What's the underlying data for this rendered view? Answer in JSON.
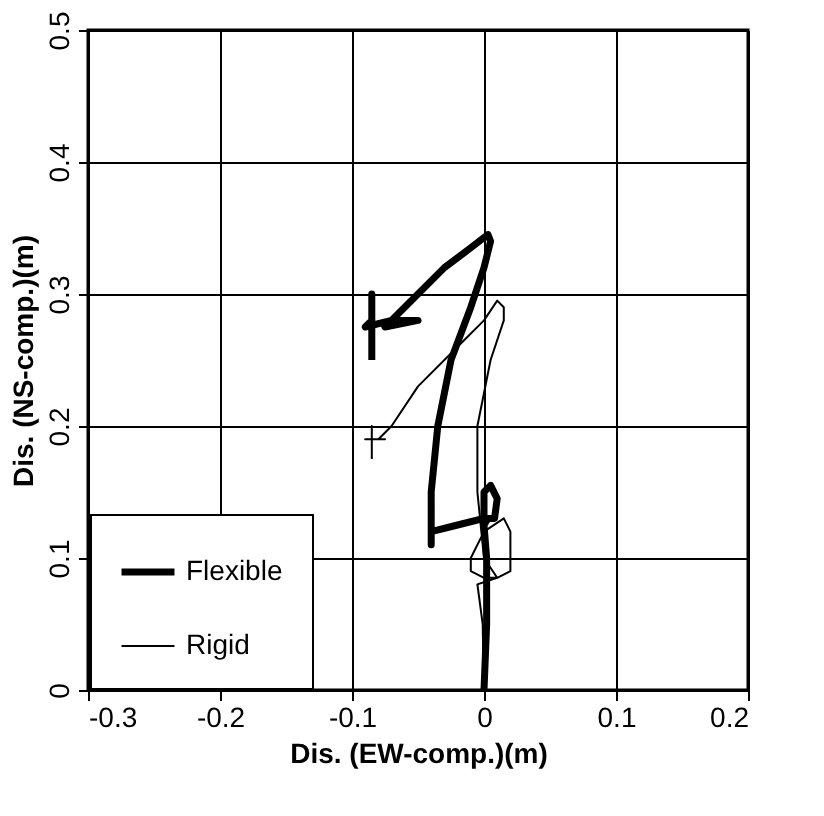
{
  "chart_data": {
    "type": "line",
    "xlabel": "Dis. (EW-comp.)(m)",
    "ylabel": "Dis. (NS-comp.)(m)",
    "xlim": [
      -0.3,
      0.2
    ],
    "xticks": [
      -0.3,
      -0.2,
      -0.1,
      0,
      0.1,
      0.2
    ],
    "ylim": [
      0,
      0.5
    ],
    "yticks": [
      0,
      0.1,
      0.2,
      0.3,
      0.4,
      0.5
    ],
    "grid": true,
    "legend": "bottom left",
    "line_style": "solid",
    "series": [
      {
        "name": "Flexible",
        "color": "#000000",
        "x": [
          0,
          0.002,
          0.002,
          0,
          0.003,
          0.008,
          0.01,
          0.005,
          0,
          0,
          -0.02,
          -0.04,
          -0.04,
          -0.04,
          -0.035,
          -0.025,
          -0.01,
          0,
          0.005,
          0.003,
          -0.01,
          -0.03,
          -0.05,
          -0.065,
          -0.075,
          -0.05,
          -0.07,
          -0.09,
          -0.085,
          -0.085,
          -0.085
        ],
        "values": [
          0,
          0.05,
          0.1,
          0.125,
          0.13,
          0.13,
          0.145,
          0.155,
          0.15,
          0.13,
          0.125,
          0.12,
          0.11,
          0.15,
          0.2,
          0.25,
          0.29,
          0.32,
          0.34,
          0.345,
          0.335,
          0.32,
          0.3,
          0.285,
          0.275,
          0.28,
          0.28,
          0.275,
          0.28,
          0.3,
          0.25
        ]
      },
      {
        "name": "Rigid",
        "color": "#000000",
        "x": [
          0,
          -0.001,
          -0.005,
          0.01,
          0.02,
          0.02,
          0.015,
          0,
          -0.01,
          -0.01,
          0,
          0.01,
          0,
          -0.005,
          -0.005,
          0.005,
          0.015,
          0.015,
          0.01,
          0,
          -0.02,
          -0.05,
          -0.07,
          -0.08,
          -0.09,
          -0.075,
          -0.085,
          -0.085,
          -0.085
        ],
        "values": [
          0,
          0.05,
          0.08,
          0.085,
          0.09,
          0.12,
          0.13,
          0.12,
          0.1,
          0.09,
          0.085,
          0.085,
          0.1,
          0.15,
          0.2,
          0.25,
          0.28,
          0.29,
          0.295,
          0.28,
          0.26,
          0.23,
          0.2,
          0.19,
          0.19,
          0.19,
          0.19,
          0.2,
          0.175
        ]
      }
    ]
  }
}
